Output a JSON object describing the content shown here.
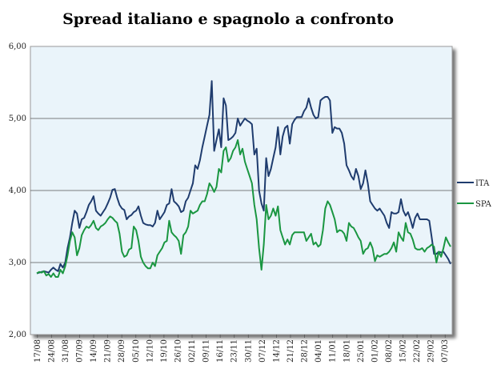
{
  "chart_data": {
    "type": "line",
    "title": "Spread italiano e spagnolo a confronto",
    "xlabel": "",
    "ylabel": "",
    "ylim": [
      2.0,
      6.0
    ],
    "yticks": [
      "2,00",
      "3,00",
      "4,00",
      "5,00",
      "6,00"
    ],
    "ytick_values": [
      2.0,
      3.0,
      4.0,
      5.0,
      6.0
    ],
    "xticks": [
      "17/08",
      "24/08",
      "31/08",
      "07/09",
      "14/09",
      "21/09",
      "28/09",
      "05/10",
      "12/10",
      "19/10",
      "26/10",
      "02/11",
      "09/11",
      "16/11",
      "23/11",
      "30/11",
      "07/12",
      "14/12",
      "21/12",
      "28/12",
      "04/01",
      "11/01",
      "18/01",
      "25/01",
      "01/02",
      "08/02",
      "15/02",
      "22/02",
      "29/02",
      "07/03"
    ],
    "grid": "horizontal",
    "legend_position": "right",
    "series": [
      {
        "name": "ITA",
        "color": "#1f3c6e",
        "values": [
          2.85,
          2.86,
          2.87,
          2.88,
          2.87,
          2.86,
          2.9,
          2.93,
          2.9,
          2.88,
          2.98,
          2.93,
          3.0,
          3.2,
          3.35,
          3.55,
          3.72,
          3.68,
          3.48,
          3.6,
          3.62,
          3.7,
          3.8,
          3.85,
          3.92,
          3.72,
          3.68,
          3.65,
          3.7,
          3.75,
          3.82,
          3.9,
          4.01,
          4.02,
          3.9,
          3.8,
          3.75,
          3.73,
          3.6,
          3.64,
          3.66,
          3.7,
          3.72,
          3.78,
          3.65,
          3.55,
          3.53,
          3.52,
          3.52,
          3.5,
          3.55,
          3.72,
          3.6,
          3.65,
          3.7,
          3.8,
          3.82,
          4.02,
          3.85,
          3.82,
          3.78,
          3.7,
          3.72,
          3.85,
          3.9,
          4.0,
          4.1,
          4.35,
          4.3,
          4.42,
          4.6,
          4.75,
          4.9,
          5.05,
          5.52,
          4.55,
          4.7,
          4.85,
          4.6,
          5.28,
          5.18,
          4.7,
          4.72,
          4.75,
          4.8,
          5.0,
          4.9,
          4.95,
          5.0,
          4.97,
          4.95,
          4.92,
          4.5,
          4.58,
          4.0,
          3.82,
          3.72,
          4.45,
          4.2,
          4.3,
          4.45,
          4.6,
          4.88,
          4.5,
          4.75,
          4.87,
          4.9,
          4.65,
          4.92,
          4.98,
          5.02,
          5.02,
          5.02,
          5.1,
          5.15,
          5.28,
          5.15,
          5.05,
          5.0,
          5.02,
          5.25,
          5.28,
          5.3,
          5.3,
          5.25,
          4.8,
          4.88,
          4.86,
          4.86,
          4.8,
          4.65,
          4.35,
          4.28,
          4.2,
          4.15,
          4.3,
          4.2,
          4.02,
          4.1,
          4.28,
          4.1,
          3.85,
          3.8,
          3.75,
          3.72,
          3.75,
          3.7,
          3.65,
          3.55,
          3.48,
          3.7,
          3.68,
          3.68,
          3.7,
          3.88,
          3.72,
          3.65,
          3.7,
          3.6,
          3.48,
          3.62,
          3.68,
          3.6,
          3.6,
          3.6,
          3.6,
          3.58,
          3.35,
          3.12,
          3.12,
          3.15,
          3.14,
          3.15,
          3.1,
          3.05,
          2.98
        ]
      },
      {
        "name": "SPA",
        "color": "#1a9641",
        "values": [
          2.85,
          2.87,
          2.86,
          2.88,
          2.82,
          2.84,
          2.8,
          2.85,
          2.8,
          2.8,
          2.9,
          2.85,
          2.95,
          3.1,
          3.3,
          3.42,
          3.35,
          3.1,
          3.2,
          3.38,
          3.45,
          3.5,
          3.48,
          3.52,
          3.58,
          3.48,
          3.45,
          3.5,
          3.52,
          3.55,
          3.6,
          3.64,
          3.62,
          3.58,
          3.55,
          3.4,
          3.15,
          3.08,
          3.1,
          3.18,
          3.2,
          3.5,
          3.45,
          3.3,
          3.08,
          3.0,
          2.95,
          2.92,
          2.92,
          3.0,
          2.95,
          3.1,
          3.15,
          3.2,
          3.28,
          3.3,
          3.58,
          3.42,
          3.38,
          3.35,
          3.3,
          3.12,
          3.38,
          3.42,
          3.5,
          3.72,
          3.68,
          3.7,
          3.72,
          3.8,
          3.85,
          3.85,
          3.95,
          4.1,
          4.05,
          3.98,
          4.05,
          4.3,
          4.25,
          4.55,
          4.6,
          4.4,
          4.45,
          4.55,
          4.6,
          4.7,
          4.5,
          4.58,
          4.4,
          4.3,
          4.2,
          4.1,
          3.8,
          3.6,
          3.2,
          2.9,
          3.25,
          3.8,
          3.6,
          3.65,
          3.75,
          3.65,
          3.78,
          3.45,
          3.35,
          3.25,
          3.32,
          3.25,
          3.38,
          3.42,
          3.42,
          3.42,
          3.42,
          3.42,
          3.3,
          3.35,
          3.4,
          3.25,
          3.28,
          3.22,
          3.25,
          3.45,
          3.75,
          3.85,
          3.8,
          3.7,
          3.6,
          3.42,
          3.45,
          3.44,
          3.4,
          3.3,
          3.55,
          3.5,
          3.48,
          3.42,
          3.35,
          3.3,
          3.12,
          3.18,
          3.2,
          3.28,
          3.2,
          3.02,
          3.1,
          3.08,
          3.1,
          3.12,
          3.12,
          3.15,
          3.2,
          3.28,
          3.15,
          3.42,
          3.35,
          3.3,
          3.55,
          3.42,
          3.4,
          3.32,
          3.2,
          3.18,
          3.18,
          3.2,
          3.15,
          3.2,
          3.22,
          3.25,
          3.22,
          3.0,
          3.15,
          3.08,
          3.2,
          3.35,
          3.28,
          3.22
        ]
      }
    ]
  }
}
